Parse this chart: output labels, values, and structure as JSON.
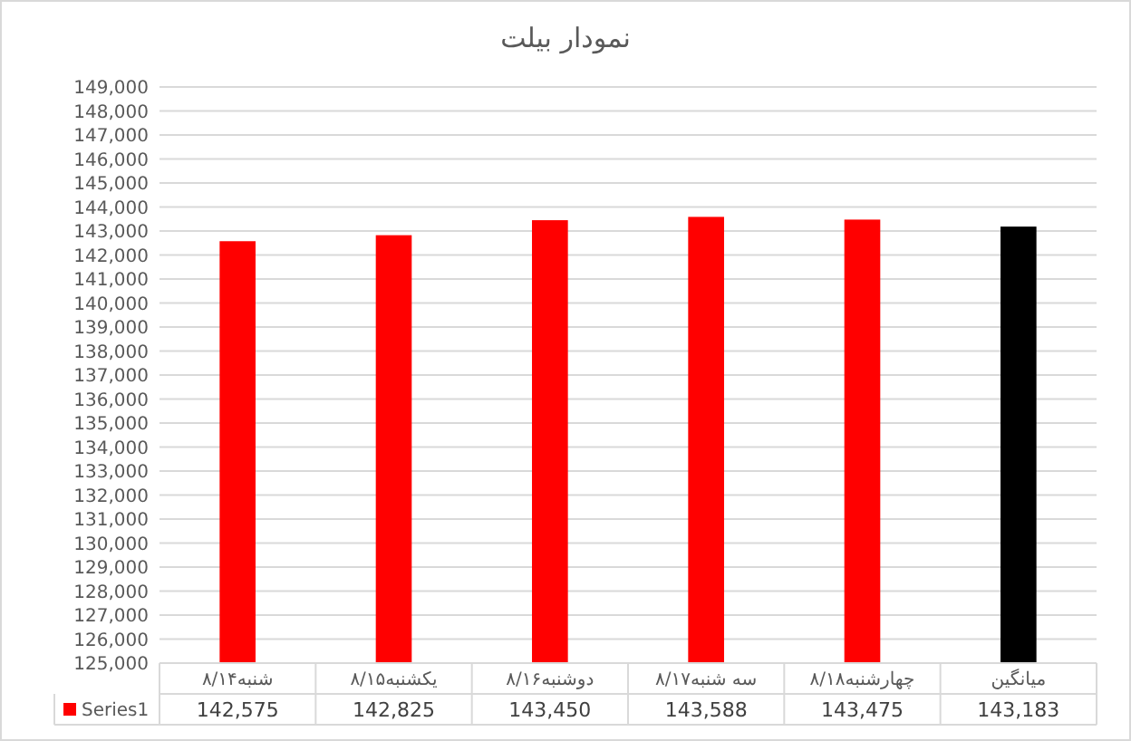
{
  "chart_data": {
    "type": "bar",
    "title": "نمودار بیلت",
    "categories": [
      "شنبه۸/۱۴",
      "یکشنبه۸/۱۵",
      "دوشنبه۸/۱۶",
      "سه شنبه۸/۱۷",
      "چهارشنبه۸/۱۸",
      "میانگین"
    ],
    "series": [
      {
        "name": "Series1",
        "color": "#ff0000",
        "colors": [
          "#ff0000",
          "#ff0000",
          "#ff0000",
          "#ff0000",
          "#ff0000",
          "#000000"
        ],
        "values": [
          142575,
          142825,
          143450,
          143588,
          143475,
          143183
        ],
        "value_labels": [
          "142,575",
          "142,825",
          "143,450",
          "143,588",
          "143,475",
          "143,183"
        ]
      }
    ],
    "ylim": [
      125000,
      149000
    ],
    "yticks": [
      {
        "value": 125000,
        "label": "125,000"
      },
      {
        "value": 126000,
        "label": "126,000"
      },
      {
        "value": 127000,
        "label": "127,000"
      },
      {
        "value": 128000,
        "label": "128,000"
      },
      {
        "value": 129000,
        "label": "129,000"
      },
      {
        "value": 130000,
        "label": "130,000"
      },
      {
        "value": 131000,
        "label": "131,000"
      },
      {
        "value": 132000,
        "label": "132,000"
      },
      {
        "value": 133000,
        "label": "133,000"
      },
      {
        "value": 134000,
        "label": "134,000"
      },
      {
        "value": 135000,
        "label": "135,000"
      },
      {
        "value": 136000,
        "label": "136,000"
      },
      {
        "value": 137000,
        "label": "137,000"
      },
      {
        "value": 138000,
        "label": "138,000"
      },
      {
        "value": 139000,
        "label": "139,000"
      },
      {
        "value": 140000,
        "label": "140,000"
      },
      {
        "value": 141000,
        "label": "141,000"
      },
      {
        "value": 142000,
        "label": "142,000"
      },
      {
        "value": 143000,
        "label": "143,000"
      },
      {
        "value": 144000,
        "label": "144,000"
      },
      {
        "value": 145000,
        "label": "145,000"
      },
      {
        "value": 146000,
        "label": "146,000"
      },
      {
        "value": 147000,
        "label": "147,000"
      },
      {
        "value": 148000,
        "label": "148,000"
      },
      {
        "value": 149000,
        "label": "149,000"
      }
    ],
    "grid": "y",
    "legend": "bottom"
  }
}
